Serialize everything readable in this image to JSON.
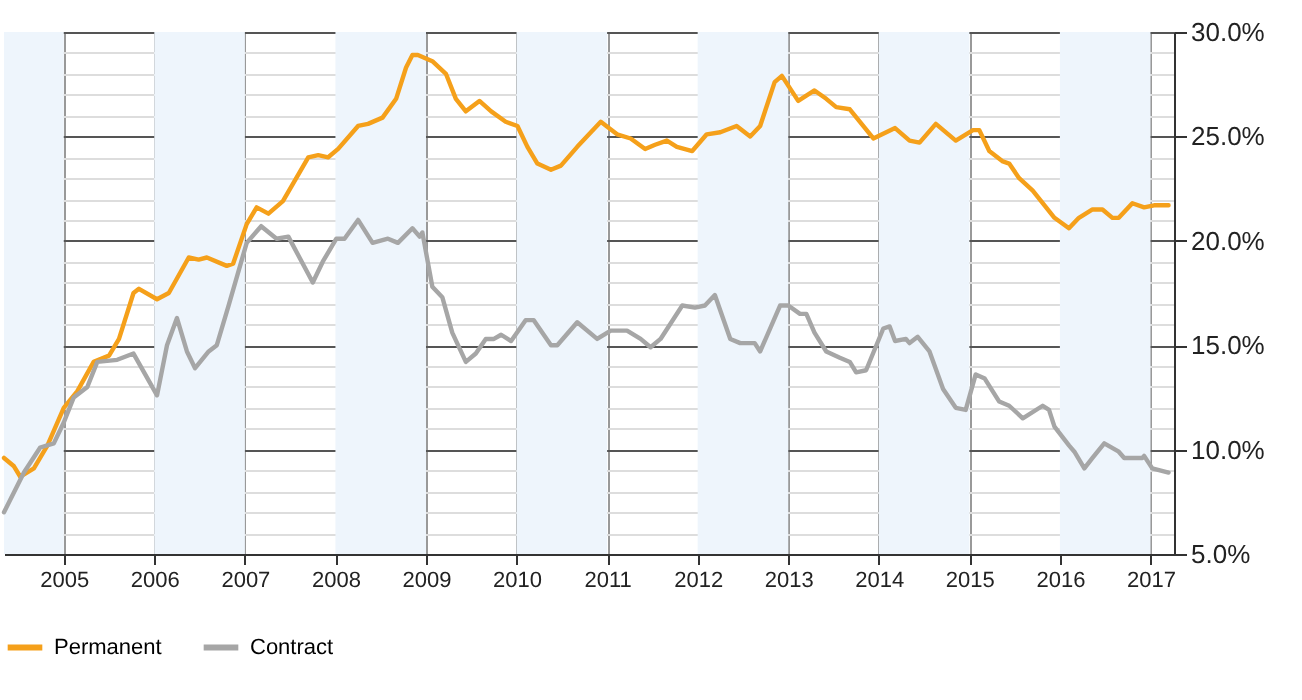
{
  "chart_data": {
    "type": "line",
    "xlim": [
      2004.34,
      2017.26
    ],
    "xticks": [
      2005,
      2006,
      2007,
      2008,
      2009,
      2010,
      2011,
      2012,
      2013,
      2014,
      2015,
      2016,
      2017
    ],
    "ylim": [
      5,
      30
    ],
    "yticks": [
      {
        "value": 5,
        "label": "5.0%"
      },
      {
        "value": 6,
        "label": null
      },
      {
        "value": 7,
        "label": null
      },
      {
        "value": 8,
        "label": null
      },
      {
        "value": 9,
        "label": null
      },
      {
        "value": 10,
        "label": "10.0%"
      },
      {
        "value": 11,
        "label": null
      },
      {
        "value": 12,
        "label": null
      },
      {
        "value": 13,
        "label": null
      },
      {
        "value": 14,
        "label": null
      },
      {
        "value": 15,
        "label": "15.0%"
      },
      {
        "value": 16,
        "label": null
      },
      {
        "value": 17,
        "label": null
      },
      {
        "value": 18,
        "label": null
      },
      {
        "value": 19,
        "label": null
      },
      {
        "value": 20,
        "label": "20.0%"
      },
      {
        "value": 21,
        "label": null
      },
      {
        "value": 22,
        "label": null
      },
      {
        "value": 23,
        "label": null
      },
      {
        "value": 24,
        "label": null
      },
      {
        "value": 25,
        "label": "25.0%"
      },
      {
        "value": 26,
        "label": null
      },
      {
        "value": 27,
        "label": null
      },
      {
        "value": 28,
        "label": null
      },
      {
        "value": 29,
        "label": null
      },
      {
        "value": 30,
        "label": "30.0%"
      }
    ],
    "grid": true,
    "legend": "bottom",
    "marker": "none",
    "line_style": "solid",
    "bands": [
      {
        "axis": "x",
        "from": 2004.34,
        "to": 2005,
        "color": "#eef5fc"
      },
      {
        "axis": "x",
        "from": 2006,
        "to": 2007,
        "color": "#eef5fc"
      },
      {
        "axis": "x",
        "from": 2008,
        "to": 2009,
        "color": "#eef5fc"
      },
      {
        "axis": "x",
        "from": 2010,
        "to": 2011,
        "color": "#eef5fc"
      },
      {
        "axis": "x",
        "from": 2012,
        "to": 2013,
        "color": "#eef5fc"
      },
      {
        "axis": "x",
        "from": 2014,
        "to": 2015,
        "color": "#eef5fc"
      },
      {
        "axis": "x",
        "from": 2016,
        "to": 2017,
        "color": "#eef5fc"
      }
    ],
    "series": [
      {
        "name": "Permanent",
        "color": "#f5a01a",
        "x": [
          2004.34,
          2004.45,
          2004.52,
          2004.67,
          2004.82,
          2005.0,
          2005.15,
          2005.33,
          2005.5,
          2005.61,
          2005.77,
          2005.83,
          2006.03,
          2006.16,
          2006.38,
          2006.49,
          2006.58,
          2006.8,
          2006.87,
          2007.02,
          2007.13,
          2007.26,
          2007.42,
          2007.7,
          2007.81,
          2007.92,
          2008.03,
          2008.25,
          2008.36,
          2008.52,
          2008.67,
          2008.78,
          2008.85,
          2008.91,
          2009.07,
          2009.22,
          2009.33,
          2009.44,
          2009.59,
          2009.72,
          2009.88,
          2010.01,
          2010.12,
          2010.23,
          2010.38,
          2010.49,
          2010.67,
          2010.93,
          2011.11,
          2011.26,
          2011.42,
          2011.53,
          2011.66,
          2011.77,
          2011.94,
          2012.1,
          2012.25,
          2012.43,
          2012.58,
          2012.69,
          2012.85,
          2012.93,
          2013.11,
          2013.29,
          2013.42,
          2013.53,
          2013.68,
          2013.94,
          2014.18,
          2014.34,
          2014.45,
          2014.63,
          2014.85,
          2015.04,
          2015.11,
          2015.22,
          2015.37,
          2015.44,
          2015.55,
          2015.7,
          2015.94,
          2016.1,
          2016.21,
          2016.36,
          2016.47,
          2016.58,
          2016.65,
          2016.8,
          2016.93,
          2017.04,
          2017.2
        ],
        "values": [
          9.6,
          9.2,
          8.7,
          9.1,
          10.2,
          12.0,
          12.8,
          14.2,
          14.5,
          15.3,
          17.5,
          17.7,
          17.2,
          17.5,
          19.2,
          19.1,
          19.2,
          18.8,
          18.9,
          20.8,
          21.6,
          21.3,
          21.9,
          24.0,
          24.1,
          24.0,
          24.4,
          25.5,
          25.6,
          25.9,
          26.8,
          28.3,
          28.9,
          28.9,
          28.6,
          28.0,
          26.8,
          26.2,
          26.7,
          26.2,
          25.7,
          25.5,
          24.5,
          23.7,
          23.4,
          23.6,
          24.5,
          25.7,
          25.1,
          24.9,
          24.4,
          24.6,
          24.8,
          24.5,
          24.3,
          25.1,
          25.2,
          25.5,
          25.0,
          25.5,
          27.6,
          27.9,
          26.7,
          27.2,
          26.8,
          26.4,
          26.3,
          24.9,
          25.4,
          24.8,
          24.7,
          25.6,
          24.8,
          25.3,
          25.3,
          24.3,
          23.8,
          23.7,
          23.0,
          22.4,
          21.1,
          20.6,
          21.1,
          21.5,
          21.5,
          21.1,
          21.1,
          21.8,
          21.6,
          21.7,
          21.7
        ]
      },
      {
        "name": "Contract",
        "color": "#a6a6a6",
        "x": [
          2004.34,
          2004.56,
          2004.74,
          2004.89,
          2005.0,
          2005.11,
          2005.26,
          2005.37,
          2005.59,
          2005.77,
          2006.03,
          2006.14,
          2006.25,
          2006.36,
          2006.45,
          2006.6,
          2006.69,
          2006.82,
          2007.02,
          2007.18,
          2007.35,
          2007.48,
          2007.75,
          2007.86,
          2008.01,
          2008.1,
          2008.25,
          2008.41,
          2008.58,
          2008.69,
          2008.85,
          2008.93,
          2008.96,
          2009.07,
          2009.18,
          2009.29,
          2009.44,
          2009.55,
          2009.66,
          2009.75,
          2009.83,
          2009.94,
          2010.1,
          2010.19,
          2010.38,
          2010.45,
          2010.67,
          2010.89,
          2011.04,
          2011.22,
          2011.37,
          2011.48,
          2011.59,
          2011.83,
          2011.97,
          2012.08,
          2012.19,
          2012.36,
          2012.47,
          2012.63,
          2012.69,
          2012.91,
          2013.0,
          2013.13,
          2013.2,
          2013.29,
          2013.42,
          2013.57,
          2013.68,
          2013.75,
          2013.86,
          2014.05,
          2014.12,
          2014.18,
          2014.3,
          2014.34,
          2014.43,
          2014.56,
          2014.71,
          2014.85,
          2014.96,
          2015.07,
          2015.17,
          2015.33,
          2015.44,
          2015.59,
          2015.81,
          2015.88,
          2015.94,
          2016.1,
          2016.16,
          2016.27,
          2016.36,
          2016.49,
          2016.65,
          2016.71,
          2016.91,
          2016.93,
          2017.02,
          2017.2
        ],
        "values": [
          7.0,
          8.9,
          10.1,
          10.3,
          11.3,
          12.5,
          13.0,
          14.2,
          14.3,
          14.6,
          12.6,
          15.0,
          16.3,
          14.7,
          13.9,
          14.7,
          15.0,
          16.9,
          19.9,
          20.7,
          20.1,
          20.2,
          18.0,
          19.0,
          20.1,
          20.1,
          21.0,
          19.9,
          20.1,
          19.9,
          20.6,
          20.2,
          20.4,
          17.8,
          17.3,
          15.6,
          14.2,
          14.6,
          15.3,
          15.3,
          15.5,
          15.2,
          16.2,
          16.2,
          15.0,
          15.0,
          16.1,
          15.3,
          15.7,
          15.7,
          15.3,
          14.9,
          15.3,
          16.9,
          16.8,
          16.9,
          17.4,
          15.3,
          15.1,
          15.1,
          14.7,
          16.9,
          16.9,
          16.5,
          16.5,
          15.6,
          14.7,
          14.4,
          14.2,
          13.7,
          13.8,
          15.8,
          15.9,
          15.2,
          15.3,
          15.1,
          15.4,
          14.7,
          12.9,
          12.0,
          11.9,
          13.6,
          13.4,
          12.3,
          12.1,
          11.5,
          12.1,
          11.9,
          11.1,
          10.2,
          9.9,
          9.1,
          9.6,
          10.3,
          9.9,
          9.6,
          9.6,
          9.7,
          9.1,
          8.9
        ]
      }
    ]
  }
}
